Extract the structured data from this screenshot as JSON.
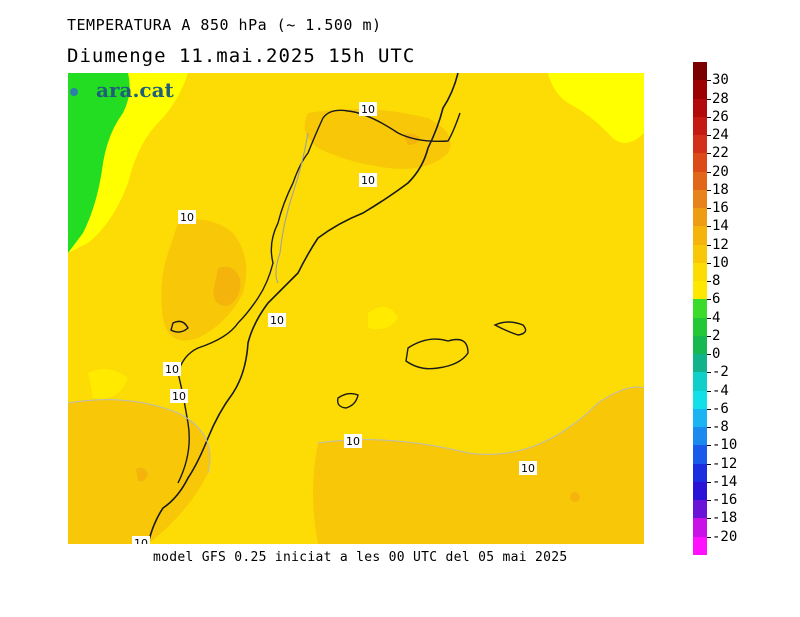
{
  "header": {
    "title": "TEMPERATURA A 850 hPa (~ 1.500 m)",
    "subtitle": "Diumenge  11.mai.2025  15h UTC"
  },
  "logo": {
    "text": "ara.cat"
  },
  "footer": {
    "text": "model GFS 0.25 iniciat a les 00 UTC del 05 mai 2025"
  },
  "isotherm_labels": [
    "10",
    "10",
    "10",
    "10",
    "10",
    "10",
    "10",
    "10",
    "10"
  ],
  "colorbar": {
    "labels": [
      "30",
      "28",
      "26",
      "24",
      "22",
      "20",
      "18",
      "16",
      "14",
      "12",
      "10",
      "8",
      "6",
      "4",
      "2",
      "0",
      "-2",
      "-4",
      "-6",
      "-8",
      "-10",
      "-12",
      "-14",
      "-16",
      "-18",
      "-20"
    ],
    "colors": [
      "#7a0000",
      "#9c0000",
      "#b20a0a",
      "#c41a12",
      "#d2301a",
      "#dc4a1a",
      "#e2661a",
      "#e8821a",
      "#ee9c12",
      "#f4b40c",
      "#f8c808",
      "#fcdc04",
      "#ffe800",
      "#3adb2a",
      "#22c838",
      "#18b850",
      "#12b28a",
      "#0fcfc8",
      "#12e0e8",
      "#1ab4f2",
      "#1a8aee",
      "#1a5aea",
      "#1a2ee0",
      "#2a12d6",
      "#6a12d6",
      "#c812e6",
      "#ff10ff"
    ]
  },
  "palette": {
    "bg_yellow": "#fcdc04",
    "warm_yellow": "#f8c808",
    "orange": "#f4b40c",
    "dark_orange": "#ee9c12",
    "lime": "#ffff00",
    "green": "#22dd22"
  }
}
